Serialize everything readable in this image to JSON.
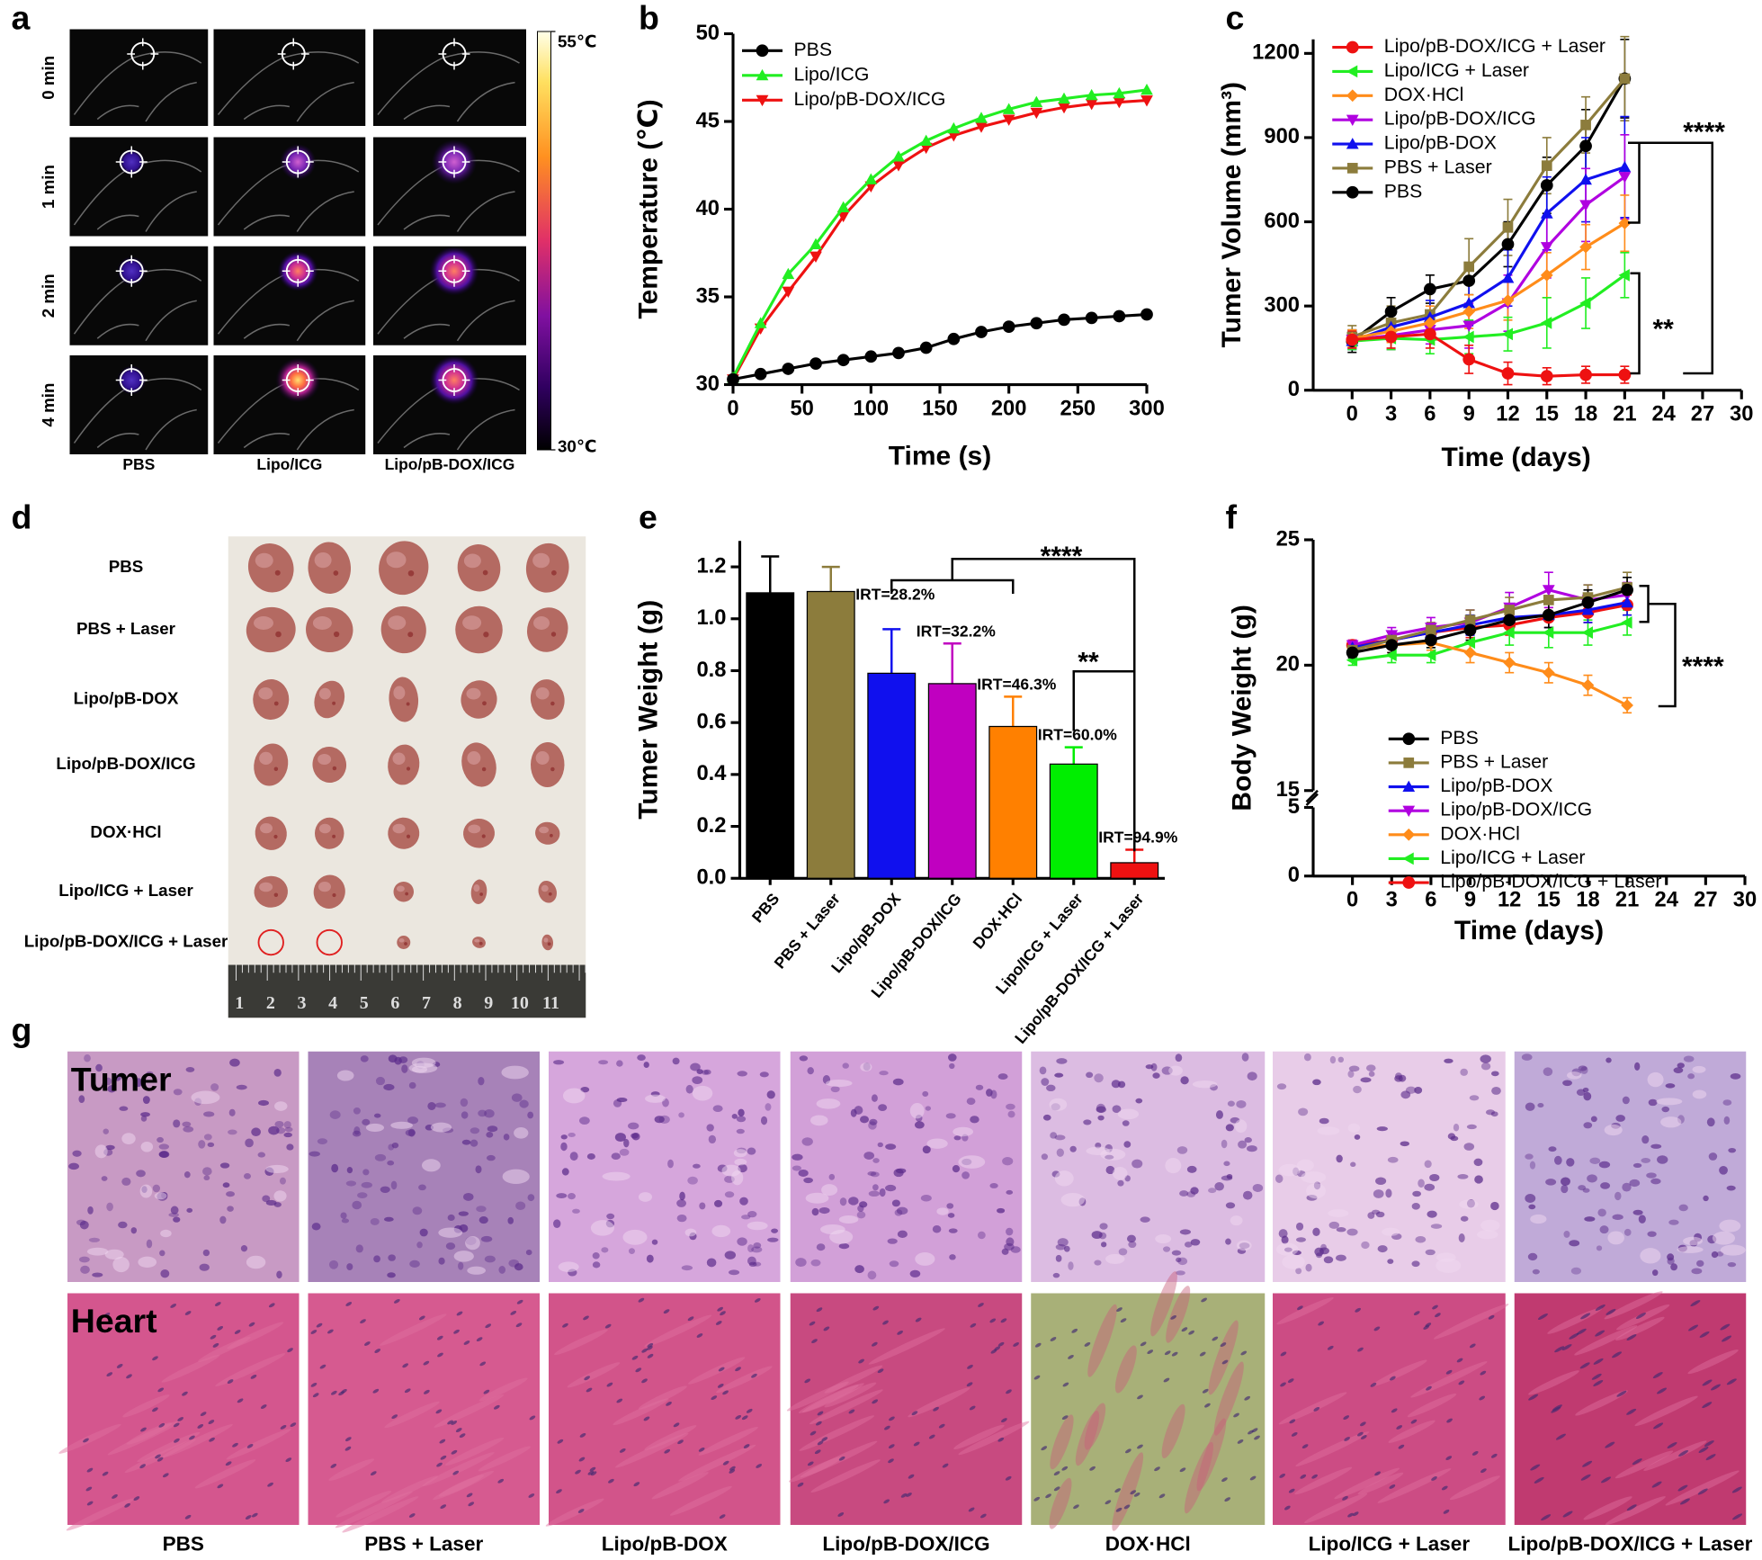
{
  "panel_labels": [
    "a",
    "b",
    "c",
    "d",
    "e",
    "f",
    "g"
  ],
  "panel_a": {
    "times": [
      "0 min",
      "1 min",
      "2 min",
      "4 min"
    ],
    "groups": [
      "PBS",
      "Lipo/ICG",
      "Lipo/pB-DOX/ICG"
    ],
    "colorbar_lim": [
      30,
      55
    ],
    "colorbar_ticks": [
      {
        "value": 30,
        "label": "30℃"
      },
      {
        "value": 55,
        "label": "55℃"
      }
    ]
  },
  "chart_data": [
    {
      "type": "line",
      "xlabel": "Time (s)",
      "ylabel": "Temperature (℃)",
      "x": [
        0,
        20,
        40,
        60,
        80,
        100,
        120,
        140,
        160,
        180,
        200,
        220,
        240,
        260,
        280,
        300
      ],
      "xlim": [
        0,
        300
      ],
      "xticks": [
        0,
        50,
        100,
        150,
        200,
        250,
        300
      ],
      "ylim": [
        30,
        50
      ],
      "yticks": [
        30,
        35,
        40,
        45,
        50
      ],
      "legend": "upper left",
      "series": [
        {
          "name": "PBS",
          "color": "#000000",
          "marker": "circle",
          "values": [
            30.3,
            30.6,
            30.9,
            31.2,
            31.4,
            31.6,
            31.8,
            32.1,
            32.6,
            33.0,
            33.3,
            33.5,
            33.7,
            33.8,
            33.9,
            34.0
          ]
        },
        {
          "name": "Lipo/ICG",
          "color": "#22ee22",
          "marker": "triangle-up",
          "values": [
            30.4,
            33.5,
            36.3,
            38.0,
            40.1,
            41.7,
            43.0,
            43.9,
            44.6,
            45.2,
            45.7,
            46.1,
            46.3,
            46.5,
            46.6,
            46.8
          ]
        },
        {
          "name": "Lipo/pB-DOX/ICG",
          "color": "#ee1111",
          "marker": "triangle-down",
          "values": [
            30.3,
            33.2,
            35.3,
            37.3,
            39.6,
            41.3,
            42.5,
            43.5,
            44.2,
            44.7,
            45.1,
            45.5,
            45.8,
            46.0,
            46.1,
            46.2
          ]
        }
      ]
    },
    {
      "type": "line",
      "xlabel": "Time (days)",
      "ylabel": "Tumer Volume (mm³)",
      "x": [
        0,
        3,
        6,
        9,
        12,
        15,
        18,
        21
      ],
      "xlim": [
        -3,
        30
      ],
      "xticks": [
        0,
        3,
        6,
        9,
        12,
        15,
        18,
        21,
        24,
        27,
        30
      ],
      "ylim": [
        0,
        1250
      ],
      "yticks": [
        0,
        300,
        600,
        900,
        1200
      ],
      "legend": "upper left",
      "annotations": [
        "****",
        "**"
      ],
      "series": [
        {
          "name": "Lipo/pB-DOX/ICG + Laser",
          "color": "#ee1111",
          "marker": "circle",
          "values": [
            180,
            190,
            200,
            110,
            60,
            50,
            55,
            55
          ],
          "errors": [
            30,
            40,
            50,
            50,
            40,
            30,
            30,
            30
          ]
        },
        {
          "name": "Lipo/ICG + Laser",
          "color": "#22ee22",
          "marker": "triangle-left",
          "values": [
            175,
            185,
            180,
            190,
            200,
            240,
            310,
            410
          ],
          "errors": [
            30,
            40,
            50,
            60,
            60,
            90,
            90,
            80
          ]
        },
        {
          "name": "DOX·HCl",
          "color": "#ff8c1a",
          "marker": "diamond",
          "values": [
            185,
            210,
            240,
            280,
            320,
            410,
            510,
            595
          ],
          "errors": [
            30,
            40,
            60,
            60,
            70,
            80,
            80,
            100
          ]
        },
        {
          "name": "Lipo/pB-DOX/ICG",
          "color": "#b000e0",
          "marker": "triangle-down",
          "values": [
            180,
            195,
            215,
            230,
            310,
            510,
            660,
            760
          ],
          "errors": [
            30,
            50,
            50,
            80,
            100,
            110,
            130,
            150
          ]
        },
        {
          "name": "Lipo/pB-DOX",
          "color": "#1010ee",
          "marker": "triangle-up",
          "values": [
            175,
            225,
            260,
            310,
            400,
            630,
            750,
            795
          ],
          "errors": [
            30,
            50,
            60,
            80,
            100,
            130,
            150,
            180
          ]
        },
        {
          "name": "PBS + Laser",
          "color": "#8c7c3c",
          "marker": "square",
          "values": [
            190,
            240,
            270,
            440,
            580,
            800,
            945,
            1110
          ],
          "errors": [
            40,
            60,
            80,
            100,
            100,
            100,
            100,
            150
          ]
        },
        {
          "name": "PBS",
          "color": "#000000",
          "marker": "circle",
          "values": [
            175,
            280,
            360,
            390,
            520,
            730,
            870,
            1110
          ],
          "errors": [
            40,
            50,
            50,
            50,
            80,
            100,
            130,
            140
          ]
        }
      ]
    },
    {
      "type": "bar",
      "ylabel": "Tumer Weight (g)",
      "categories": [
        "PBS",
        "PBS + Laser",
        "Lipo/pB-DOX",
        "Lipo/pB-DOX/ICG",
        "DOX·HCl",
        "Lipo/ICG + Laser",
        "Lipo/pB-DOX/ICG + Laser"
      ],
      "values": [
        1.1,
        1.105,
        0.79,
        0.75,
        0.585,
        0.44,
        0.06
      ],
      "errors": [
        0.14,
        0.095,
        0.17,
        0.155,
        0.115,
        0.065,
        0.05
      ],
      "colors": [
        "#000000",
        "#8c7c3c",
        "#1010ee",
        "#c000c0",
        "#ff8000",
        "#00ee00",
        "#ee1111"
      ],
      "ylim": [
        0,
        1.3
      ],
      "yticks": [
        {
          "value": 0,
          "label": "0.0"
        },
        0.2,
        0.4,
        0.6,
        0.8,
        {
          "value": 1,
          "label": "1.0"
        },
        1.2
      ],
      "bar_notes": [
        null,
        null,
        "IRT=28.2%",
        "IRT=32.2%",
        "IRT=46.3%",
        "IRT=60.0%",
        "IRT=94.9%"
      ],
      "annotations": [
        "****",
        "**"
      ]
    },
    {
      "type": "line",
      "xlabel": "Time (days)",
      "ylabel": "Body Weight (g)",
      "x": [
        0,
        3,
        6,
        9,
        12,
        15,
        18,
        21
      ],
      "xlim": [
        -3,
        30
      ],
      "xticks": [
        0,
        3,
        6,
        9,
        12,
        15,
        18,
        21,
        24,
        27,
        30
      ],
      "ylim": [
        0,
        25
      ],
      "ybreak": [
        5,
        15
      ],
      "yticks": [
        0,
        5,
        15,
        20,
        25
      ],
      "legend": "lower left",
      "annotations": [
        "****"
      ],
      "series": [
        {
          "name": "PBS",
          "color": "#000000",
          "marker": "circle",
          "values": [
            20.5,
            20.8,
            21.0,
            21.4,
            21.8,
            22.0,
            22.5,
            23.0
          ],
          "errors": [
            0.2,
            0.3,
            0.3,
            0.4,
            0.5,
            0.5,
            0.5,
            0.5
          ]
        },
        {
          "name": "PBS + Laser",
          "color": "#8c7c3c",
          "marker": "square",
          "values": [
            20.6,
            21.0,
            21.4,
            21.8,
            22.2,
            22.6,
            22.7,
            23.1
          ],
          "errors": [
            0.2,
            0.3,
            0.3,
            0.4,
            0.5,
            0.5,
            0.5,
            0.6
          ]
        },
        {
          "name": "Lipo/pB-DOX",
          "color": "#1010ee",
          "marker": "triangle-up",
          "values": [
            20.7,
            21.0,
            21.3,
            21.6,
            21.9,
            22.0,
            22.2,
            22.5
          ],
          "errors": [
            0.2,
            0.3,
            0.3,
            0.4,
            0.4,
            0.5,
            0.5,
            0.5
          ]
        },
        {
          "name": "Lipo/pB-DOX/ICG",
          "color": "#b000e0",
          "marker": "triangle-down",
          "values": [
            20.8,
            21.2,
            21.5,
            21.7,
            22.3,
            23.0,
            22.6,
            22.8
          ],
          "errors": [
            0.2,
            0.3,
            0.4,
            0.5,
            0.6,
            0.7,
            0.6,
            0.5
          ]
        },
        {
          "name": "DOX·HCl",
          "color": "#ff8c1a",
          "marker": "diamond",
          "values": [
            20.7,
            20.8,
            20.9,
            20.5,
            20.1,
            19.7,
            19.2,
            18.4
          ],
          "errors": [
            0.2,
            0.3,
            0.3,
            0.4,
            0.4,
            0.4,
            0.4,
            0.3
          ]
        },
        {
          "name": "Lipo/ICG + Laser",
          "color": "#22ee22",
          "marker": "triangle-left",
          "values": [
            20.2,
            20.4,
            20.4,
            20.9,
            21.3,
            21.3,
            21.3,
            21.7
          ],
          "errors": [
            0.2,
            0.3,
            0.3,
            0.4,
            0.5,
            0.6,
            0.5,
            0.5
          ]
        },
        {
          "name": "Lipo/pB-DOX/ICG + Laser",
          "color": "#ee1111",
          "marker": "circle",
          "values": [
            20.8,
            21.0,
            21.3,
            21.5,
            21.6,
            21.9,
            22.1,
            22.4
          ],
          "errors": [
            0.2,
            0.3,
            0.3,
            0.4,
            0.4,
            0.4,
            0.4,
            0.4
          ]
        }
      ]
    }
  ],
  "panel_d": {
    "groups": [
      "PBS",
      "PBS + Laser",
      "Lipo/pB-DOX",
      "Lipo/pB-DOX/ICG",
      "DOX·HCl",
      "Lipo/ICG + Laser",
      "Lipo/pB-DOX/ICG + Laser"
    ],
    "ruler": [
      1,
      2,
      3,
      4,
      5,
      6,
      7,
      8,
      9,
      10,
      11
    ]
  },
  "panel_g": {
    "rows": [
      "Tumer",
      "Heart"
    ],
    "groups": [
      "PBS",
      "PBS + Laser",
      "Lipo/pB-DOX",
      "Lipo/pB-DOX/ICG",
      "DOX·HCl",
      "Lipo/ICG + Laser",
      "Lipo/pB-DOX/ICG + Laser"
    ]
  }
}
